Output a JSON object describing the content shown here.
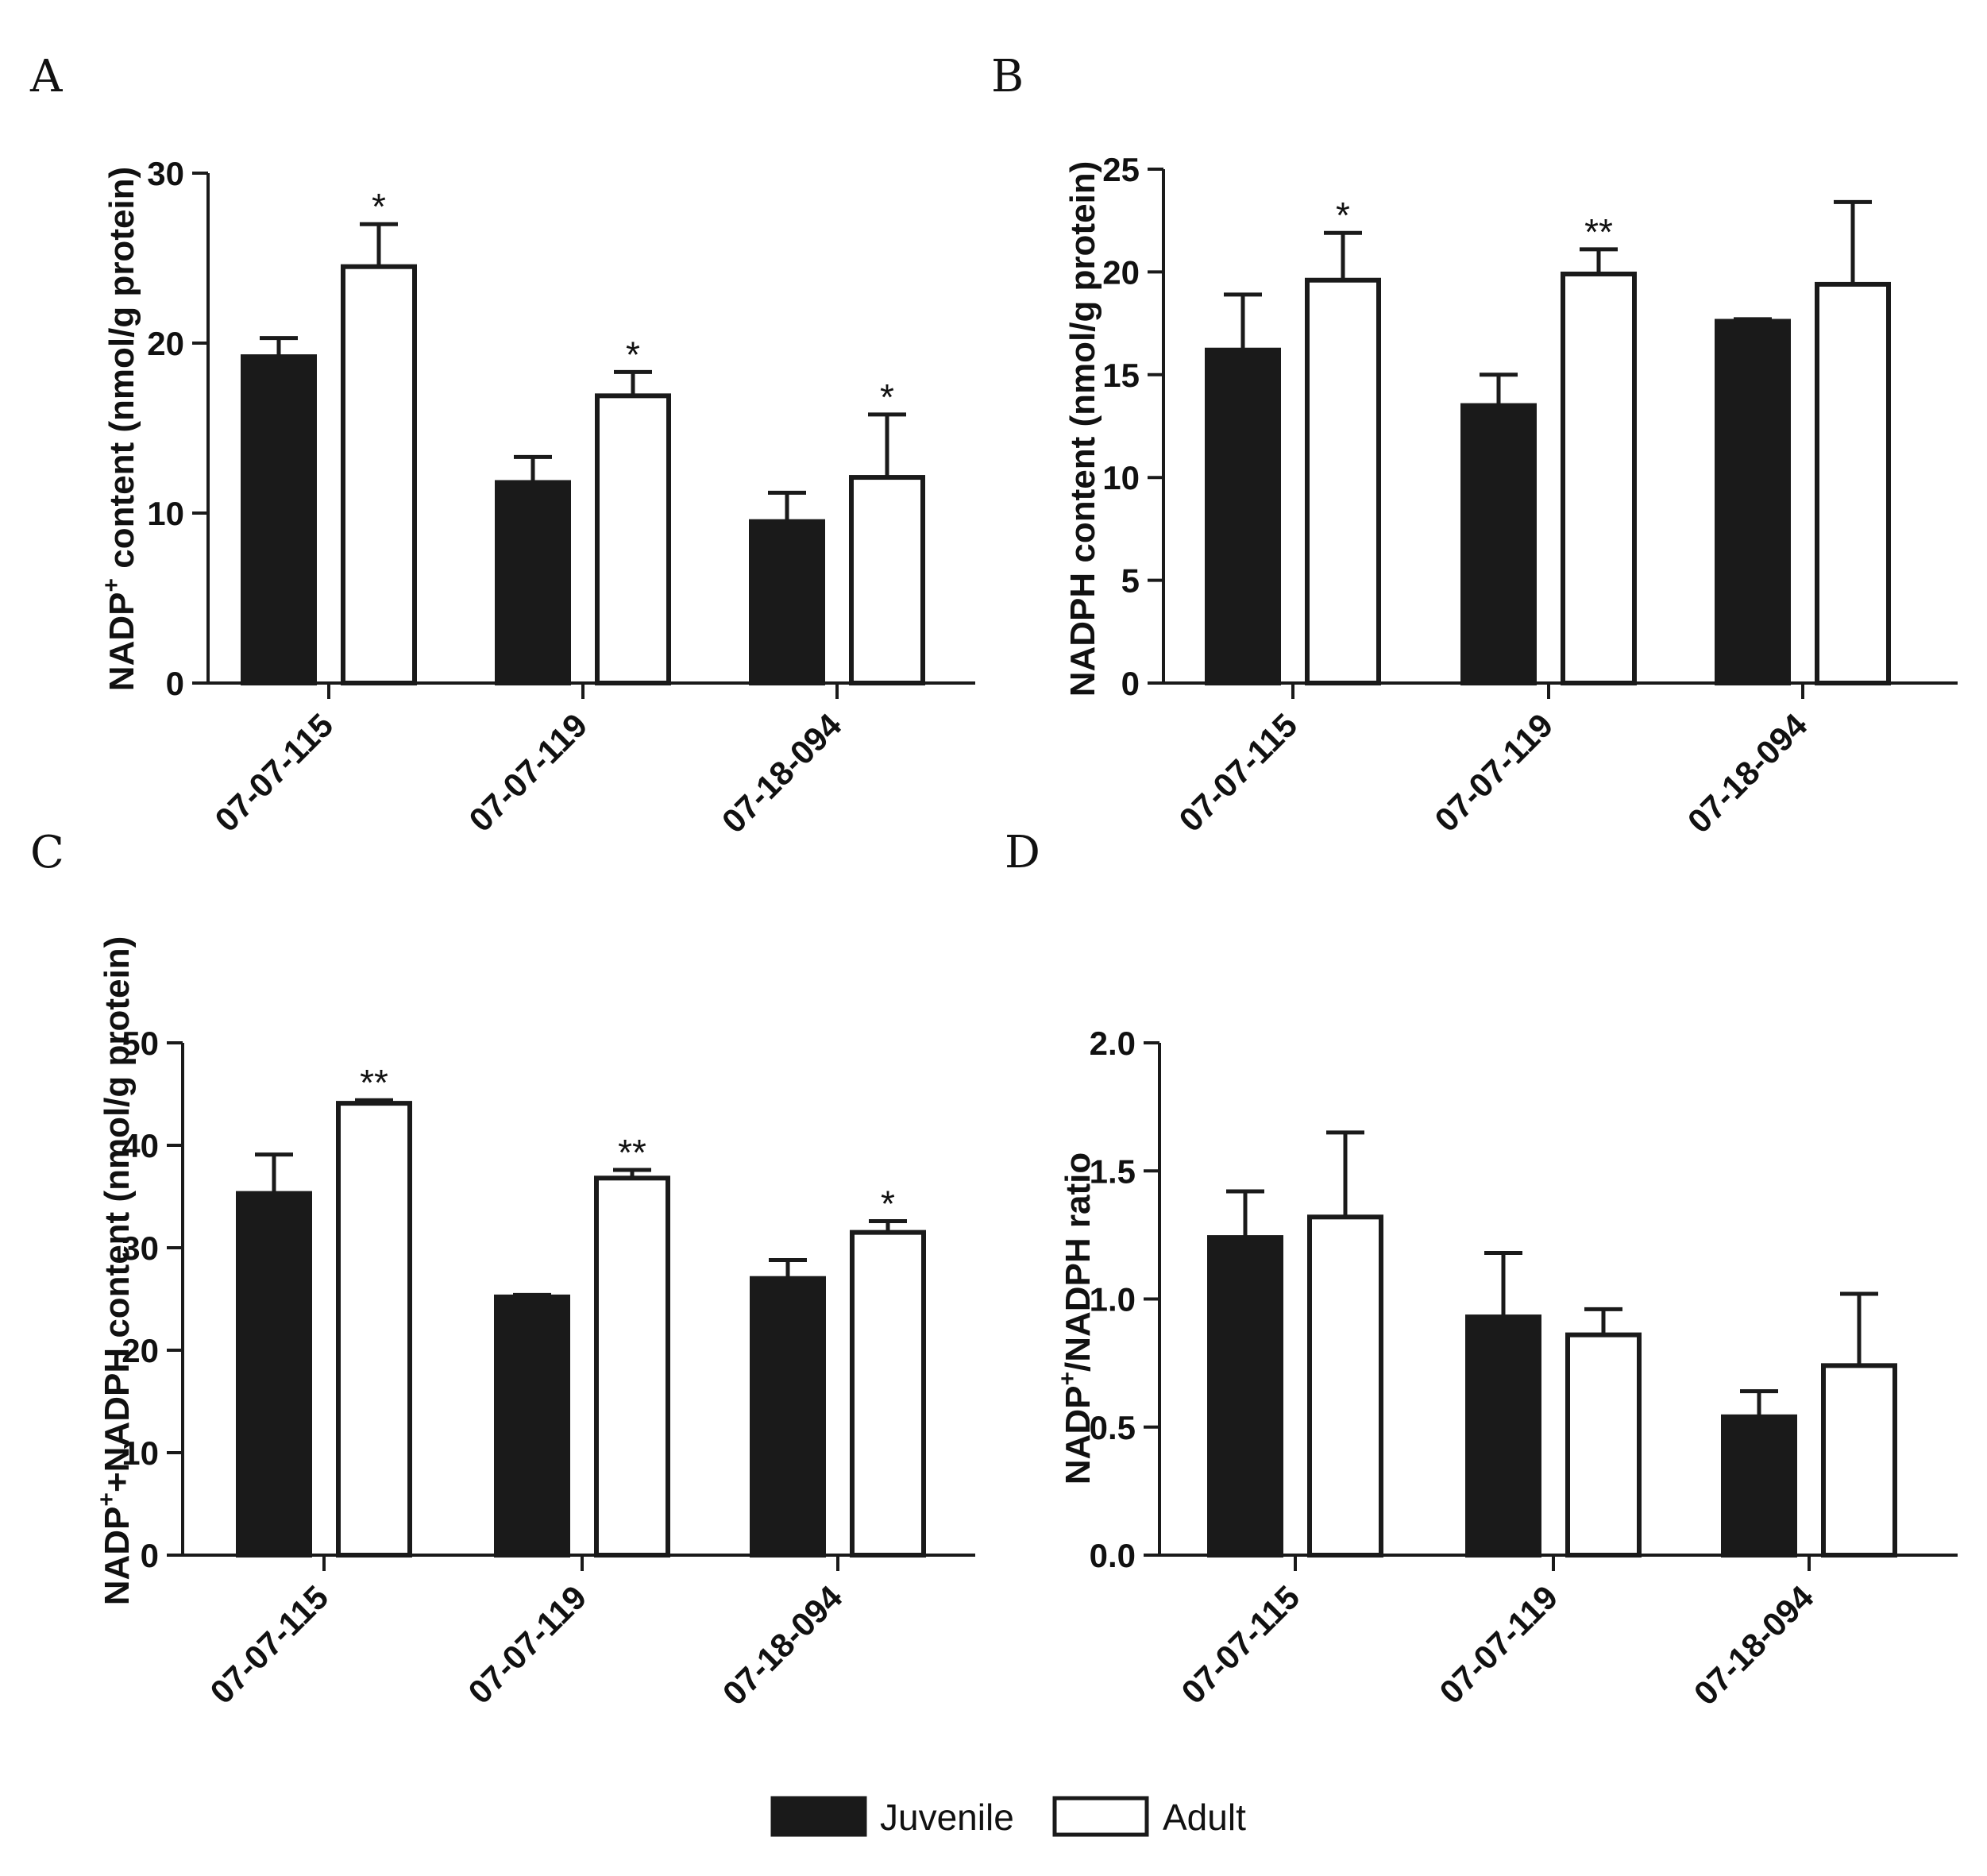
{
  "chart_data": [
    {
      "type": "bar",
      "panel": "A",
      "ylabel_main": "NADP",
      "ylabel_sup": "+",
      "ylabel_rest": " content (nmol/g protein)",
      "ylim": [
        0,
        30
      ],
      "yticks": [
        "0",
        "10",
        "20",
        "30"
      ],
      "categories": [
        "07-07-115",
        "07-07-119",
        "07-18-094"
      ],
      "series": [
        {
          "name": "Juvenile",
          "values": [
            19.2,
            11.8,
            9.5
          ],
          "errors": [
            1.1,
            1.5,
            1.7
          ],
          "sig": [
            "",
            "",
            ""
          ]
        },
        {
          "name": "Adult",
          "values": [
            24.5,
            16.9,
            12.1
          ],
          "errors": [
            2.5,
            1.4,
            3.7
          ],
          "sig": [
            "*",
            "*",
            "*"
          ]
        }
      ]
    },
    {
      "type": "bar",
      "panel": "B",
      "ylabel_main": "NADPH content (nmol/g protein)",
      "ylabel_sup": "",
      "ylabel_rest": "",
      "ylim": [
        0,
        25
      ],
      "yticks": [
        "0",
        "5",
        "10",
        "15",
        "20",
        "25"
      ],
      "categories": [
        "07-07-115",
        "07-07-119",
        "07-18-094"
      ],
      "series": [
        {
          "name": "Juvenile",
          "values": [
            16.2,
            13.5,
            17.6
          ],
          "errors": [
            2.7,
            1.5,
            0.1
          ],
          "sig": [
            "",
            "",
            ""
          ]
        },
        {
          "name": "Adult",
          "values": [
            19.6,
            19.9,
            19.4
          ],
          "errors": [
            2.3,
            1.2,
            4.0
          ],
          "sig": [
            "*",
            "**",
            ""
          ]
        }
      ]
    },
    {
      "type": "bar",
      "panel": "C",
      "ylabel_main": "NADP",
      "ylabel_sup": "+",
      "ylabel_rest": "+NADPH content (nmol/g protein)",
      "ylim": [
        0,
        50
      ],
      "yticks": [
        "0",
        "10",
        "20",
        "30",
        "40",
        "50"
      ],
      "categories": [
        "07-07-115",
        "07-07-119",
        "07-18-094"
      ],
      "series": [
        {
          "name": "Juvenile",
          "values": [
            35.3,
            25.2,
            27.0
          ],
          "errors": [
            3.8,
            0.2,
            1.8
          ],
          "sig": [
            "",
            "",
            ""
          ]
        },
        {
          "name": "Adult",
          "values": [
            44.1,
            36.8,
            31.5
          ],
          "errors": [
            0.3,
            0.8,
            1.1
          ],
          "sig": [
            "**",
            "**",
            "*"
          ]
        }
      ]
    },
    {
      "type": "bar",
      "panel": "D",
      "ylabel_main": "NADP",
      "ylabel_sup": "+",
      "ylabel_rest": "/NADPH ratio",
      "ylim": [
        0,
        2.0
      ],
      "yticks": [
        "0.0",
        "0.5",
        "1.0",
        "1.5",
        "2.0"
      ],
      "categories": [
        "07-07-115",
        "07-07-119",
        "07-18-094"
      ],
      "series": [
        {
          "name": "Juvenile",
          "values": [
            1.24,
            0.93,
            0.54
          ],
          "errors": [
            0.18,
            0.25,
            0.1
          ],
          "sig": [
            "",
            "",
            ""
          ]
        },
        {
          "name": "Adult",
          "values": [
            1.32,
            0.86,
            0.74
          ],
          "errors": [
            0.33,
            0.1,
            0.28
          ],
          "sig": [
            "",
            "",
            ""
          ]
        }
      ]
    }
  ],
  "legend": {
    "placement": "bottom-center",
    "items": [
      {
        "label": "Juvenile",
        "fill": "#1a1a1a"
      },
      {
        "label": "Adult",
        "fill": "#ffffff"
      }
    ]
  },
  "colors": {
    "juvenile": "#1a1a1a",
    "adult": "#ffffff",
    "stroke": "#1a1a1a"
  }
}
